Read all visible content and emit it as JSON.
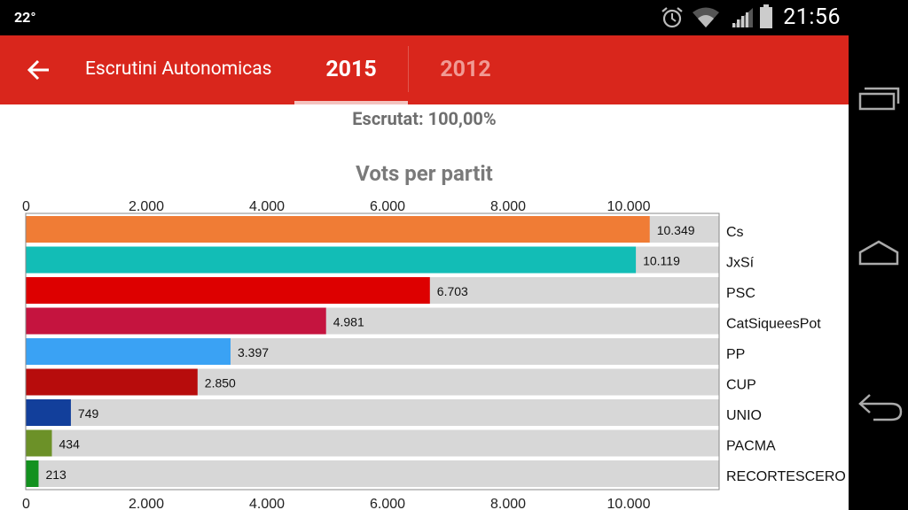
{
  "status": {
    "temperature": "22°",
    "time": "21:56"
  },
  "header": {
    "title": "Escrutini Autonomicas",
    "tabs": [
      {
        "label": "2015"
      },
      {
        "label": "2012"
      }
    ]
  },
  "scrutiny": "Escrutat: 100,00%",
  "colors": {
    "appbar": "#d9261c",
    "track": "#d7d7d7"
  },
  "chart_data": {
    "type": "bar",
    "orientation": "horizontal",
    "title": "Vots per partit",
    "xlim": [
      0,
      11500
    ],
    "ticks": [
      0,
      2000,
      4000,
      6000,
      8000,
      10000
    ],
    "tick_labels": [
      "0",
      "2.000",
      "4.000",
      "6.000",
      "8.000",
      "10.000"
    ],
    "categories": [
      "Cs",
      "JxSí",
      "PSC",
      "CatSiqueesPot",
      "PP",
      "CUP",
      "UNIO",
      "PACMA",
      "RECORTESCERO"
    ],
    "values": [
      10349,
      10119,
      6703,
      4981,
      3397,
      2850,
      749,
      434,
      213
    ],
    "value_labels": [
      "10.349",
      "10.119",
      "6.703",
      "4.981",
      "3.397",
      "2.850",
      "749",
      "434",
      "213"
    ],
    "bar_colors": [
      "#f07c35",
      "#12bdb6",
      "#dd0000",
      "#c5143f",
      "#3aa2f4",
      "#b70c0c",
      "#123f9b",
      "#6c9128",
      "#13911f"
    ]
  }
}
